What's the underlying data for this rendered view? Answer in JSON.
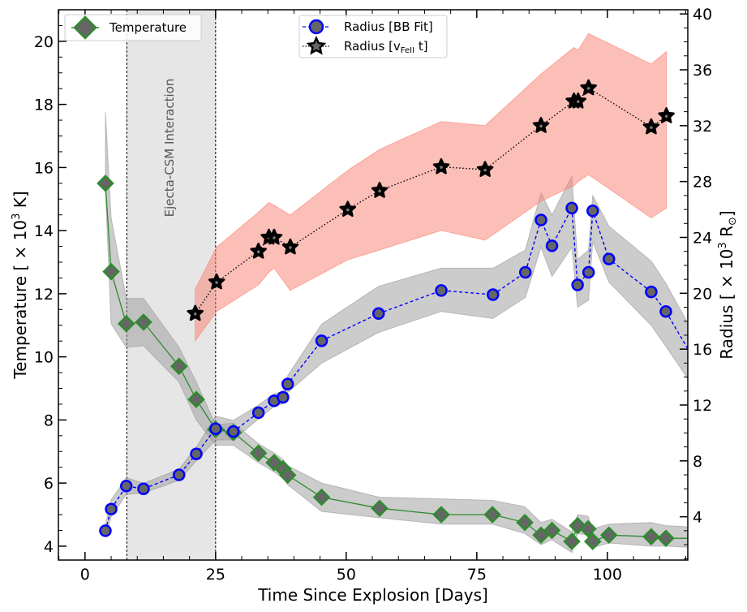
{
  "chart_data": {
    "type": "line",
    "title": "",
    "xlabel": "Time Since Explosion [Days]",
    "ylabel_left": {
      "text": "Temperature [ × 10",
      "sup": "3",
      "suffix": " K]"
    },
    "ylabel_right": {
      "text": "Radius [ × 10",
      "sup": "3",
      "suffix": " R",
      "sub": "⊙",
      "end": "]"
    },
    "xlim": [
      -5.1,
      115.4
    ],
    "ylim_left": [
      3.56,
      21.0
    ],
    "ylim_right": [
      0.9,
      40.3
    ],
    "xticks": [
      0,
      25,
      50,
      75,
      100
    ],
    "xtick_labels": [
      "0",
      "25",
      "50",
      "75",
      "100"
    ],
    "yticks_left": [
      4,
      6,
      8,
      10,
      12,
      14,
      16,
      18,
      20
    ],
    "ytick_labels_left": [
      "4",
      "6",
      "8",
      "10",
      "12",
      "14",
      "16",
      "18",
      "20"
    ],
    "yticks_right": [
      4,
      8,
      12,
      16,
      20,
      24,
      28,
      32,
      36,
      40
    ],
    "ytick_labels_right": [
      "4",
      "8",
      "12",
      "16",
      "20",
      "24",
      "28",
      "32",
      "36",
      "40"
    ],
    "grid": false,
    "shaded_region": {
      "x": [
        8,
        25
      ],
      "label": "Ejecta-CSM Interaction",
      "color": "#e6e6e6"
    },
    "legends": [
      {
        "placement": "top-left",
        "entries": [
          {
            "label": "Temperature",
            "series": "temperature"
          }
        ]
      },
      {
        "placement": "top-center",
        "entries": [
          {
            "label": "Radius [BB Fit]",
            "series": "radius_bb"
          },
          {
            "label": "Radius [v",
            "sub": "FeII",
            "label_end": " t]",
            "series": "radius_vfe"
          }
        ]
      }
    ],
    "series": [
      {
        "name": "Temperature",
        "key": "temperature",
        "axis": "left",
        "color": "#2e8b2e",
        "marker": "diamond",
        "linestyle": "solid",
        "x": [
          3.9,
          5.0,
          7.9,
          11.2,
          18.0,
          21.3,
          25.0,
          28.4,
          33.2,
          36.2,
          37.9,
          38.8,
          45.3,
          56.4,
          68.2,
          78.0,
          84.2,
          87.3,
          89.4,
          93.2,
          94.3,
          96.3,
          97.2,
          100.3,
          108.4,
          111.2
        ],
        "y": [
          15.5,
          12.7,
          11.05,
          11.1,
          9.7,
          8.65,
          7.7,
          7.6,
          6.95,
          6.65,
          6.45,
          6.25,
          5.55,
          5.2,
          5.0,
          5.0,
          4.75,
          4.35,
          4.5,
          4.15,
          4.65,
          4.55,
          4.15,
          4.35,
          4.3,
          4.25
        ],
        "lower": [
          15.3,
          11.05,
          10.3,
          10.35,
          9.2,
          8.0,
          7.2,
          7.2,
          6.65,
          6.35,
          6.15,
          5.95,
          5.1,
          4.9,
          4.7,
          4.7,
          4.4,
          4.05,
          4.2,
          3.8,
          4.4,
          4.35,
          3.95,
          4.1,
          4.0,
          4.0
        ],
        "upper": [
          17.75,
          14.4,
          11.85,
          11.85,
          10.3,
          9.2,
          7.85,
          7.9,
          7.25,
          6.95,
          6.75,
          6.55,
          6.0,
          5.55,
          5.5,
          5.45,
          5.25,
          4.75,
          4.85,
          4.45,
          5.0,
          4.95,
          4.55,
          4.7,
          4.75,
          4.65
        ],
        "trail": {
          "x": 117,
          "y": 4.25,
          "lower": 3.95,
          "upper": 4.6
        }
      },
      {
        "name": "Radius [BB Fit]",
        "key": "radius_bb",
        "axis": "right",
        "color": "#0000ff",
        "marker": "circle",
        "linestyle": "dashed",
        "x": [
          3.9,
          5.0,
          7.9,
          11.2,
          18.0,
          21.3,
          25.0,
          28.4,
          33.2,
          36.2,
          37.9,
          38.8,
          45.3,
          56.2,
          68.2,
          78.1,
          84.3,
          87.3,
          89.4,
          93.2,
          94.3,
          96.4,
          97.2,
          100.3,
          108.4,
          111.2
        ],
        "y": [
          3.0,
          4.55,
          6.2,
          6.0,
          7.0,
          8.5,
          10.3,
          10.1,
          11.45,
          12.3,
          12.55,
          13.5,
          16.6,
          18.55,
          20.2,
          19.9,
          21.5,
          25.25,
          23.4,
          26.1,
          20.6,
          21.5,
          25.9,
          22.45,
          20.1,
          18.7
        ],
        "lower": [
          2.6,
          4.0,
          5.6,
          5.7,
          6.6,
          8.0,
          9.5,
          9.5,
          11.0,
          11.9,
          12.1,
          12.9,
          15.0,
          17.2,
          18.7,
          18.2,
          19.7,
          23.3,
          21.2,
          23.3,
          19.0,
          19.5,
          23.7,
          20.8,
          17.7,
          16.2
        ],
        "upper": [
          3.4,
          5.2,
          6.8,
          6.4,
          7.4,
          9.0,
          11.2,
          10.9,
          12.0,
          12.8,
          13.0,
          14.1,
          17.8,
          20.5,
          21.8,
          21.8,
          23.1,
          27.2,
          25.6,
          28.4,
          22.4,
          23.1,
          27.0,
          24.8,
          22.3,
          20.7
        ],
        "trail": {
          "x": 117,
          "y": 15.0,
          "lower": 13.0,
          "upper": 16.8
        }
      },
      {
        "name": "Radius [vFeII t]",
        "key": "radius_vfe",
        "axis": "right",
        "color": "#000000",
        "band_color": "#fa8072",
        "marker": "star",
        "linestyle": "dotted",
        "x": [
          21.1,
          25.2,
          33.2,
          35.2,
          36.2,
          39.3,
          50.3,
          56.4,
          68.2,
          76.6,
          87.3,
          93.6,
          94.4,
          96.4,
          108.4,
          111.3
        ],
        "y": [
          18.55,
          20.8,
          23.0,
          24.0,
          24.0,
          23.3,
          26.0,
          27.35,
          29.05,
          28.85,
          32.0,
          33.75,
          33.75,
          34.7,
          31.9,
          32.7
        ],
        "lower": [
          16.6,
          18.7,
          20.6,
          21.5,
          21.8,
          20.2,
          22.4,
          23.1,
          24.5,
          23.8,
          26.6,
          27.7,
          28.0,
          28.5,
          25.4,
          26.1
        ],
        "upper": [
          20.3,
          23.3,
          25.8,
          26.5,
          26.3,
          25.6,
          28.8,
          30.3,
          32.3,
          32.0,
          35.7,
          37.6,
          37.4,
          38.6,
          36.4,
          37.3
        ]
      }
    ]
  }
}
